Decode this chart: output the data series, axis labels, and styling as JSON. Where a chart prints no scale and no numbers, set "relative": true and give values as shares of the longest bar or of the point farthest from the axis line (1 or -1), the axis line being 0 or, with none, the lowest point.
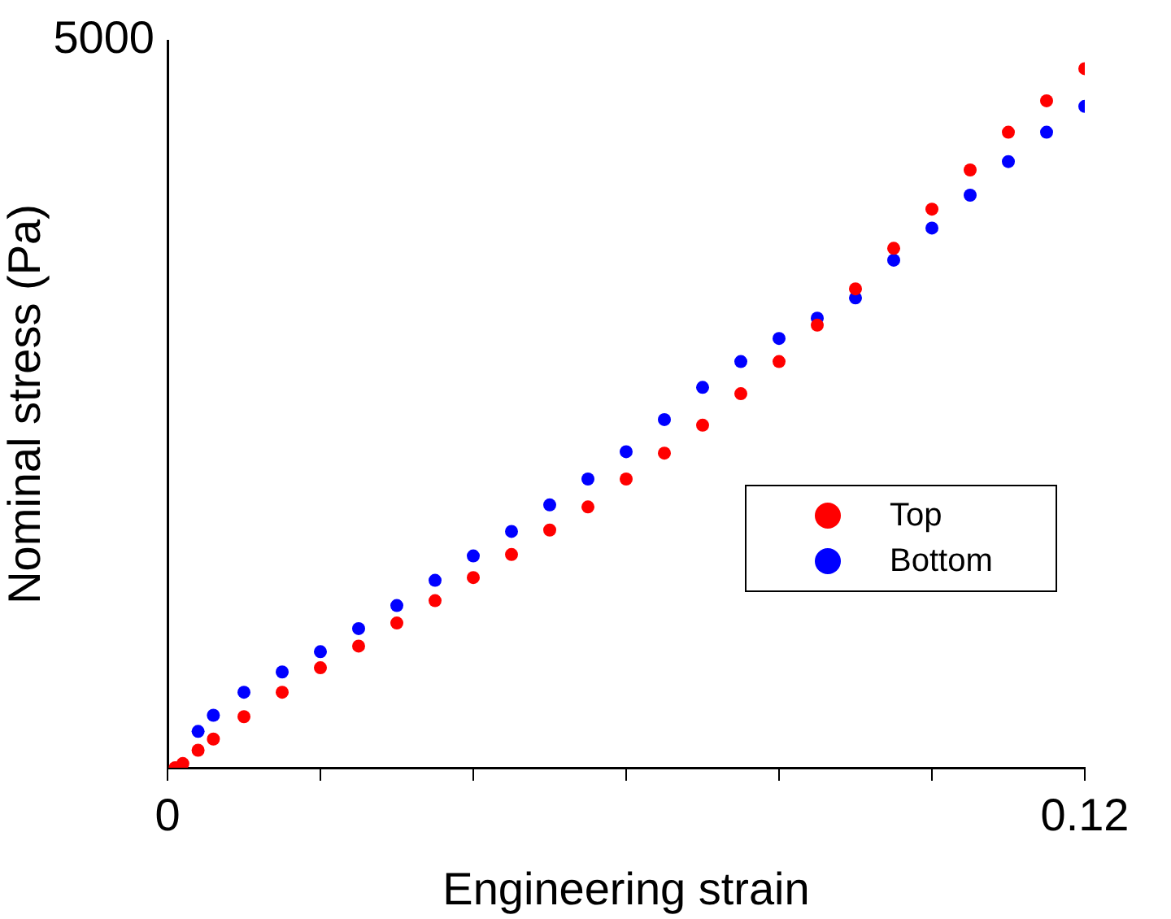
{
  "chart_data": {
    "type": "scatter",
    "xlabel": "Engineering strain",
    "ylabel": "Nominal stress (Pa)",
    "relative": true,
    "annotations": [
      "5000"
    ],
    "xlim": [
      0,
      0.12
    ],
    "xticks": [
      0,
      {
        "value": 0.02,
        "label": null
      },
      {
        "value": 0.04,
        "label": null
      },
      {
        "value": 0.06,
        "label": null
      },
      {
        "value": 0.08,
        "label": null
      },
      {
        "value": 0.1,
        "label": null
      },
      0.12
    ],
    "grid": false,
    "legend": "right",
    "marker": "circle",
    "series": [
      {
        "name": "Top",
        "color": "#ff0000",
        "x": [
          0.001,
          0.002,
          0.004,
          0.006,
          0.01,
          0.015,
          0.02,
          0.025,
          0.03,
          0.035,
          0.04,
          0.045,
          0.05,
          0.055,
          0.06,
          0.065,
          0.07,
          0.075,
          0.08,
          0.085,
          0.09,
          0.095,
          0.1,
          0.105,
          0.11,
          0.115,
          0.12
        ],
        "values": [
          0,
          0.006,
          0.025,
          0.041,
          0.073,
          0.108,
          0.143,
          0.174,
          0.207,
          0.239,
          0.272,
          0.305,
          0.34,
          0.373,
          0.413,
          0.45,
          0.49,
          0.535,
          0.581,
          0.633,
          0.685,
          0.743,
          0.799,
          0.855,
          0.909,
          0.954,
          1
        ]
      },
      {
        "name": "Bottom",
        "color": "#0000ff",
        "x": [
          0.004,
          0.006,
          0.01,
          0.015,
          0.02,
          0.025,
          0.03,
          0.035,
          0.04,
          0.045,
          0.05,
          0.055,
          0.06,
          0.065,
          0.07,
          0.075,
          0.08,
          0.085,
          0.09,
          0.095,
          0.1,
          0.105,
          0.11,
          0.115,
          0.12
        ],
        "values": [
          0.052,
          0.075,
          0.108,
          0.137,
          0.166,
          0.199,
          0.232,
          0.268,
          0.303,
          0.338,
          0.376,
          0.413,
          0.452,
          0.498,
          0.544,
          0.581,
          0.614,
          0.643,
          0.672,
          0.726,
          0.772,
          0.819,
          0.867,
          0.909,
          0.946
        ]
      }
    ]
  }
}
